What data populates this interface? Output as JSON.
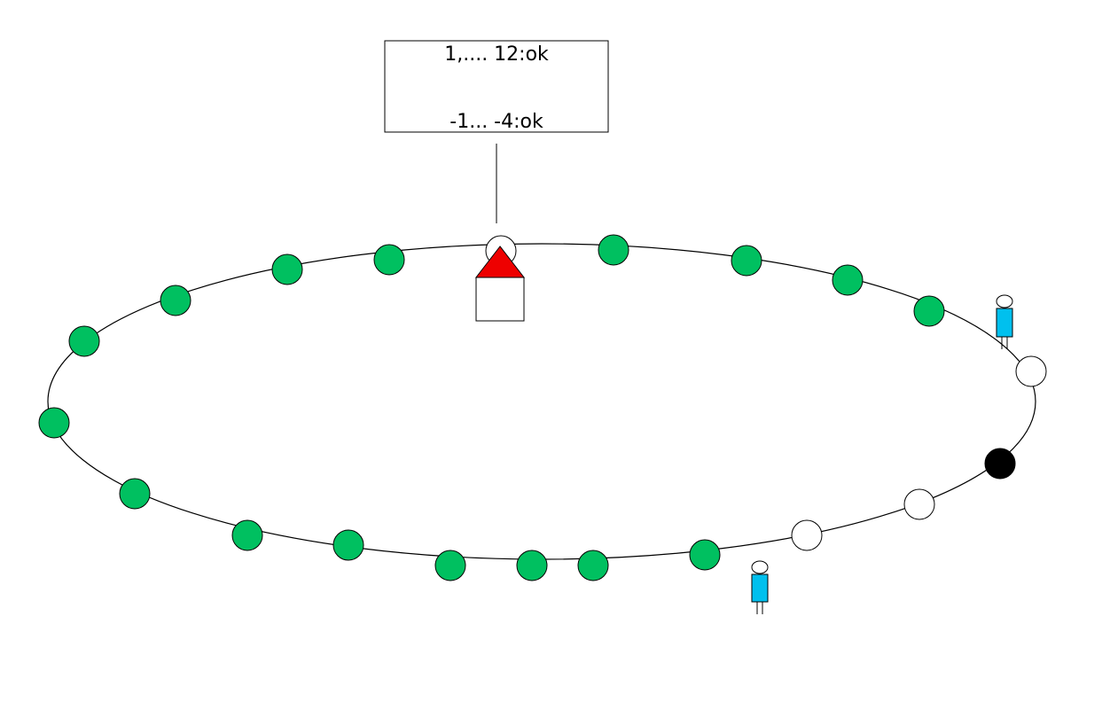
{
  "info_box": {
    "line1": "1,.... 12:ok",
    "line2": "-1... -4:ok"
  },
  "colors": {
    "ok_node": "#00c060",
    "empty_node": "#ffffff",
    "blocked_node": "#000000",
    "house_roof": "#ee0000",
    "house_body": "#ffffff",
    "person_body": "#00c0ee",
    "stroke": "#000000"
  },
  "nodes": [
    {
      "state": "empty",
      "marker": "house"
    },
    {
      "state": "ok"
    },
    {
      "state": "ok"
    },
    {
      "state": "ok"
    },
    {
      "state": "ok"
    },
    {
      "state": "empty",
      "marker": "person"
    },
    {
      "state": "blocked"
    },
    {
      "state": "empty"
    },
    {
      "state": "empty",
      "marker": "person"
    },
    {
      "state": "ok"
    },
    {
      "state": "ok"
    },
    {
      "state": "ok"
    },
    {
      "state": "ok"
    },
    {
      "state": "ok"
    },
    {
      "state": "ok"
    },
    {
      "state": "ok"
    },
    {
      "state": "ok"
    },
    {
      "state": "ok"
    },
    {
      "state": "ok"
    },
    {
      "state": "ok"
    },
    {
      "state": "ok"
    }
  ]
}
